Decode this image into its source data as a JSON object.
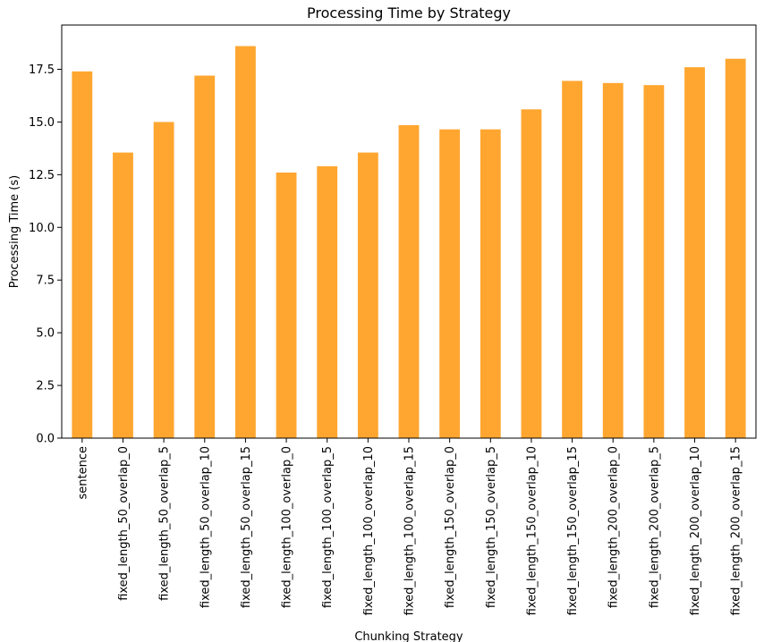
{
  "chart_data": {
    "type": "bar",
    "title": "Processing Time by Strategy",
    "xlabel": "Chunking Strategy",
    "ylabel": "Processing Time (s)",
    "ylim": [
      0,
      19.6
    ],
    "yticks": [
      "0.0",
      "2.5",
      "5.0",
      "7.5",
      "10.0",
      "12.5",
      "15.0",
      "17.5"
    ],
    "bar_color": "#ffa630",
    "grid": false,
    "legend": "none",
    "categories": [
      "sentence",
      "fixed_length_50_overlap_0",
      "fixed_length_50_overlap_5",
      "fixed_length_50_overlap_10",
      "fixed_length_50_overlap_15",
      "fixed_length_100_overlap_0",
      "fixed_length_100_overlap_5",
      "fixed_length_100_overlap_10",
      "fixed_length_100_overlap_15",
      "fixed_length_150_overlap_0",
      "fixed_length_150_overlap_5",
      "fixed_length_150_overlap_10",
      "fixed_length_150_overlap_15",
      "fixed_length_200_overlap_0",
      "fixed_length_200_overlap_5",
      "fixed_length_200_overlap_10",
      "fixed_length_200_overlap_15"
    ],
    "values": [
      17.4,
      13.55,
      15.0,
      17.2,
      18.6,
      12.6,
      12.9,
      13.55,
      14.85,
      14.65,
      14.65,
      15.6,
      16.95,
      16.85,
      16.75,
      17.6,
      18.0
    ]
  }
}
